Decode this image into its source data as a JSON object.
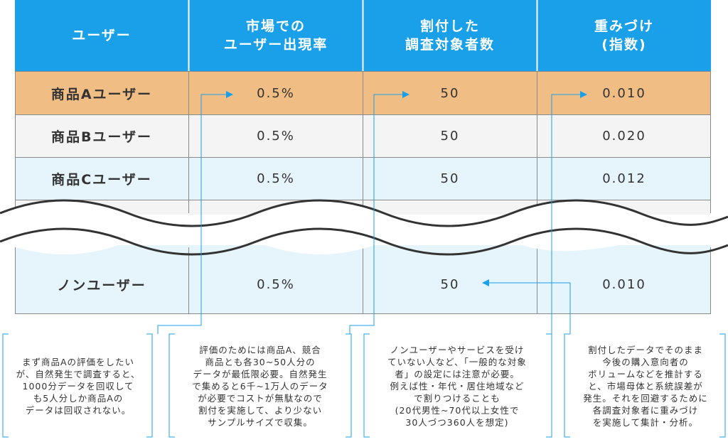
{
  "headers": [
    "ユーザー",
    "市場での\nユーザー出現率",
    "割付した\n調査対象者数",
    "重みづけ\n(指数)"
  ],
  "rows": [
    {
      "label": "商品Aユーザー",
      "rate": "0.5%",
      "count": "50",
      "weight": "0.010"
    },
    {
      "label": "商品Bユーザー",
      "rate": "0.5%",
      "count": "50",
      "weight": "0.020"
    },
    {
      "label": "商品Cユーザー",
      "rate": "0.5%",
      "count": "50",
      "weight": "0.012"
    },
    {
      "label": "ノンユーザー",
      "rate": "0.5%",
      "count": "50",
      "weight": "0.010"
    }
  ],
  "notes": [
    "まず商品Aの評価をしたい\nが、自然発生で調査すると、\n1000分データを回収して\nも5人分しか商品Aの\nデータは回収されない。",
    "評価のためには商品A、競合\n商品とも各30~50人分の\nデータが最低限必要。自然発生\nで集めると6千~1万人のデータ\nが必要でコストが無駄なので\n割付を実施して、より少ない\nサンプルサイズで収集。",
    "ノンユーザーやサービスを受け\nていない人など、「一般的な対象\n者」の設定には注意が必要。\n例えば性・年代・居住地域など\nで割りつけることも\n(20代男性~70代以上女性で\n30人づつ360人を想定)",
    "割付したデータでそのまま\n今後の購入意向者の\nボリュームなどを推計する\nと、市場母体と系統誤差が\n発生。それを回避するために\n各調査対象者に重みづけ\nを実施して集計・分析。"
  ],
  "colors": {
    "header": "#1aa0e8",
    "row_a": "#f0bd85",
    "row_b": "#f4f4f4",
    "row_c": "#e6f4fc",
    "accent_line": "#1aa0e8"
  }
}
